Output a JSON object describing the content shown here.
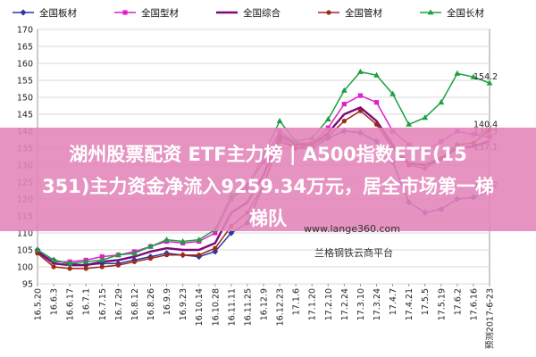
{
  "banner": {
    "line1": "湖州股票配资 ETF主力榜 | A500指数ETF(15",
    "line2": "351)主力资金净流入9259.34万元，居全市场第一梯",
    "line3": "梯队"
  },
  "watermark": {
    "url": "www.lange360.com",
    "brand": "兰格钢铁云商平台"
  },
  "chart_data": {
    "type": "line",
    "x": [
      "16.5.20",
      "16.6.3",
      "16.6.17",
      "16.7.1",
      "16.7.15",
      "16.7.29",
      "16.8.12",
      "16.8.26",
      "16.9.9",
      "16.9.23",
      "16.10.14",
      "16.10.28",
      "16.11.11",
      "16.11.25",
      "16.12.9",
      "16.12.23",
      "17.1.6",
      "17.1.20",
      "17.2.10",
      "17.2.24",
      "17.3.10",
      "17.3.24",
      "17.4.7",
      "17.4.21",
      "17.5.5",
      "17.5.19",
      "17.6.2",
      "17.6.16",
      "预测2017-6-23"
    ],
    "ylim": [
      95,
      170
    ],
    "yticks": [
      95,
      100,
      105,
      110,
      115,
      120,
      125,
      130,
      135,
      140,
      145,
      150,
      155,
      160,
      165,
      170
    ],
    "grid": true,
    "legend_position": "top",
    "series": [
      {
        "name": "全国板材",
        "color": "#2838a0",
        "marker": "diamond",
        "values": [
          105.0,
          102.0,
          101.0,
          100.5,
          101.0,
          101.0,
          102.0,
          103.0,
          104.0,
          103.5,
          103.0,
          104.5,
          110.0,
          113.0,
          124.0,
          138.0,
          135.0,
          135.0,
          138.0,
          140.0,
          139.5,
          137.0,
          131.0,
          119.0,
          116.0,
          117.0,
          120.0,
          120.5,
          122.2
        ]
      },
      {
        "name": "全国型材",
        "color": "#e020c8",
        "marker": "square",
        "values": [
          104.5,
          101.5,
          101.5,
          102.0,
          103.0,
          103.5,
          104.5,
          106.0,
          107.5,
          107.0,
          107.5,
          110.0,
          120.0,
          124.0,
          131.0,
          140.0,
          136.5,
          136.5,
          141.0,
          148.0,
          150.5,
          148.5,
          140.0,
          136.0,
          134.0,
          137.0,
          140.0,
          139.0,
          138.3
        ]
      },
      {
        "name": "全国综合",
        "color": "#7a0a7a",
        "marker": "none",
        "values": [
          104.5,
          101.0,
          100.5,
          100.5,
          101.5,
          102.0,
          103.0,
          104.5,
          105.5,
          105.0,
          105.0,
          107.0,
          116.0,
          119.0,
          127.0,
          139.0,
          136.0,
          136.0,
          139.5,
          145.0,
          147.0,
          143.0,
          136.0,
          130.5,
          130.0,
          132.0,
          135.0,
          135.5,
          137.1
        ]
      },
      {
        "name": "全国管材",
        "color": "#a02818",
        "marker": "circle",
        "values": [
          104.0,
          100.0,
          99.5,
          99.5,
          100.0,
          100.5,
          101.5,
          102.5,
          103.5,
          103.5,
          103.5,
          105.5,
          112.0,
          116.0,
          124.0,
          137.0,
          135.0,
          136.0,
          138.5,
          143.0,
          146.0,
          142.0,
          135.0,
          130.0,
          129.0,
          132.0,
          136.0,
          136.5,
          140.4
        ]
      },
      {
        "name": "全国长材",
        "color": "#1aa040",
        "marker": "triangle",
        "values": [
          105.0,
          102.0,
          101.0,
          101.5,
          102.0,
          103.5,
          104.0,
          106.0,
          108.0,
          107.5,
          108.0,
          111.0,
          121.0,
          123.0,
          133.0,
          143.0,
          137.0,
          138.0,
          143.5,
          152.0,
          157.5,
          156.5,
          151.0,
          142.0,
          144.0,
          148.5,
          157.0,
          156.0,
          154.2
        ]
      }
    ],
    "annotations": [
      "154.2",
      "140.4",
      "138.3",
      "137.1",
      "122.2"
    ]
  }
}
